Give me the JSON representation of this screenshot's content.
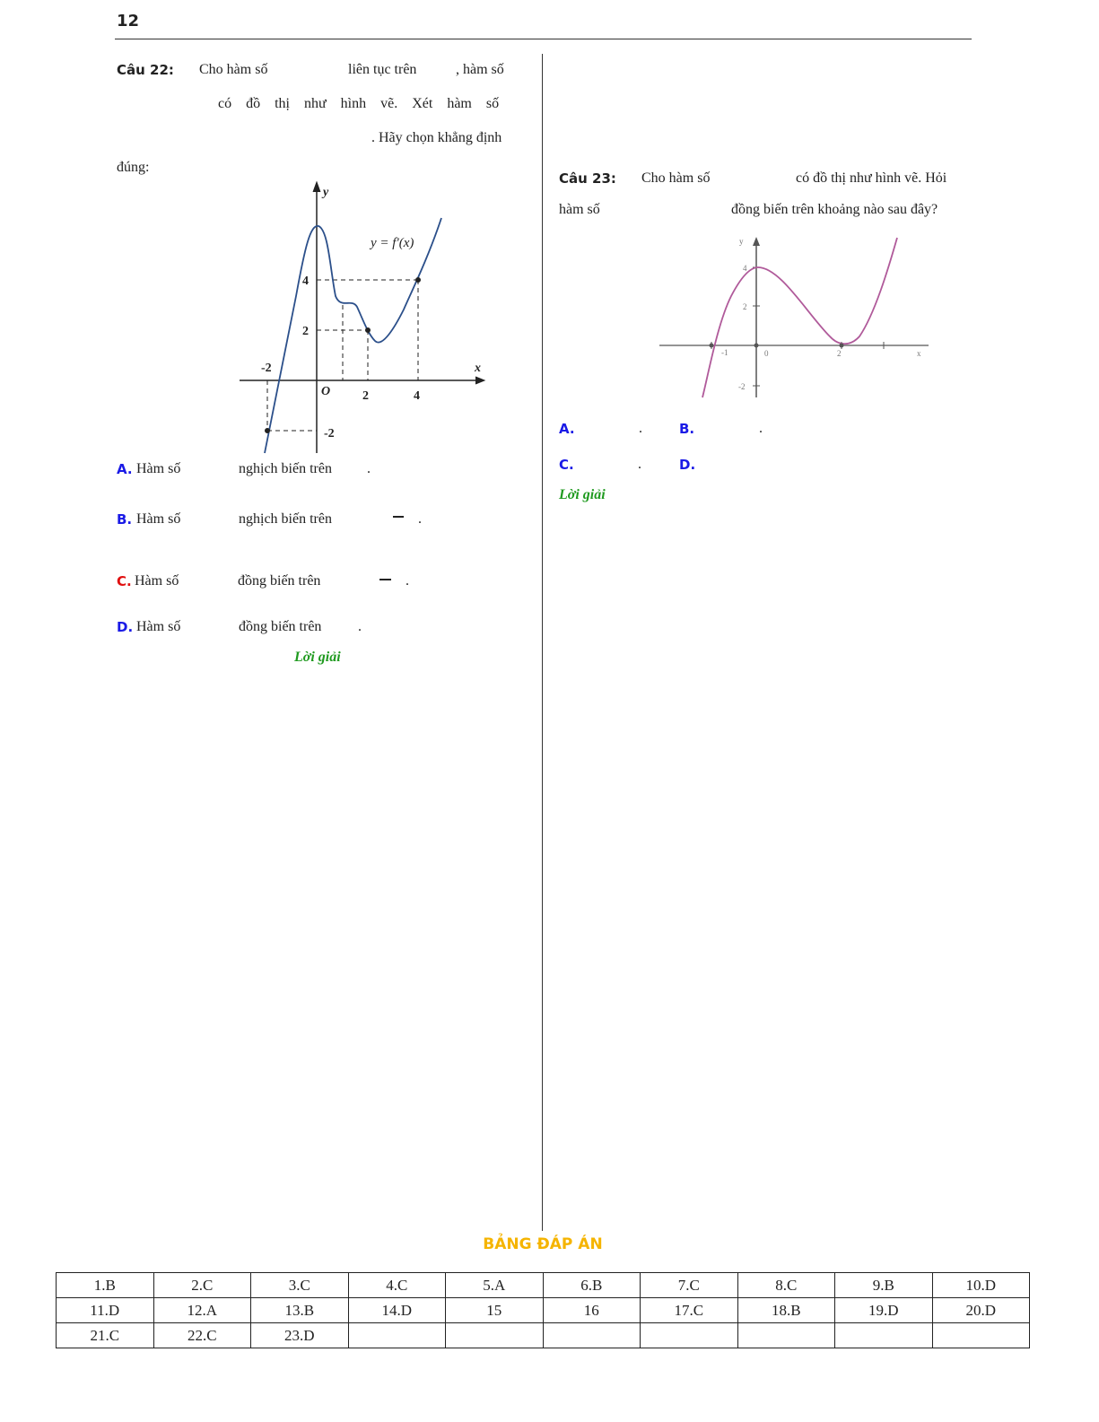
{
  "header": {
    "page_number": "12"
  },
  "question_22": {
    "label": "Câu 22:",
    "lines": [
      "Cho hàm số",
      "liên tục trên",
      ", hàm số",
      "có đồ thị như hình vẽ. Xét hàm số",
      ". Hãy chọn khẳng định",
      "đúng:"
    ],
    "figure": {
      "y_axis": "y",
      "x_axis": "x",
      "origin": "O",
      "curve_label": "y = f′(x)",
      "tick_labels": [
        "4",
        "2",
        "-2",
        "2",
        "4",
        "-2"
      ]
    },
    "options": [
      {
        "letter": "A.",
        "lead": "Hàm số",
        "text": "nghịch biến trên",
        "end": "."
      },
      {
        "letter": "B.",
        "lead": "Hàm số",
        "text": "nghịch biến trên",
        "end": "."
      },
      {
        "letter": "C.",
        "lead": "Hàm số",
        "text": "đồng biến trên",
        "end": "."
      },
      {
        "letter": "D.",
        "lead": "Hàm số",
        "text": "đồng biến trên",
        "end": "."
      }
    ],
    "solution": "Lời giải"
  },
  "question_23": {
    "label": "Câu 23:",
    "lines": [
      "Cho hàm số",
      "có đồ thị như hình vẽ. Hỏi",
      "hàm số",
      "đồng biến trên khoảng nào sau đây?"
    ],
    "figure": {
      "y_axis": "y",
      "x_axis": "x",
      "tick_labels": [
        "-1",
        "0",
        "2",
        "4",
        "2",
        "-2"
      ]
    },
    "options": [
      {
        "letter": "A.",
        "end": "."
      },
      {
        "letter": "B.",
        "end": "."
      },
      {
        "letter": "C.",
        "end": "."
      },
      {
        "letter": "D."
      }
    ],
    "solution": "Lời giải"
  },
  "answer_table": {
    "title": "BẢNG ĐÁP ÁN",
    "rows": [
      [
        "1.B",
        "2.C",
        "3.C",
        "4.C",
        "5.A",
        "6.B",
        "7.C",
        "8.C",
        "9.B",
        "10.D"
      ],
      [
        "11.D",
        "12.A",
        "13.B",
        "14.D",
        "15",
        "16",
        "17.C",
        "18.B",
        "19.D",
        "20.D"
      ],
      [
        "21.C",
        "22.C",
        "23.D",
        null,
        null,
        null,
        null,
        null,
        null,
        null
      ]
    ]
  }
}
